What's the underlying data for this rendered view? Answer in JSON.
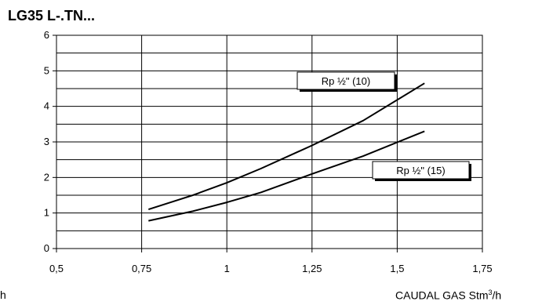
{
  "title": "LG35 L-.TN...",
  "cut_label": "h",
  "x_axis_title": {
    "main": "CAUDAL GAS Stm",
    "sup": "3",
    "end": "/h"
  },
  "chart_data": {
    "type": "line",
    "title": "LG35 L-.TN...",
    "xlabel": "CAUDAL GAS Stm³/h",
    "ylabel": "",
    "xlim": [
      0.5,
      1.75
    ],
    "ylim": [
      0,
      6
    ],
    "x_ticks": [
      "0,5",
      "0,75",
      "1",
      "1,25",
      "1,5",
      "1,75"
    ],
    "y_ticks": [
      "0",
      "1",
      "2",
      "3",
      "4",
      "5",
      "6"
    ],
    "grid": true,
    "grid_y_step": 0.5,
    "series": [
      {
        "name": "Rp ½\" (10)",
        "x": [
          0.77,
          0.9,
          1.0,
          1.1,
          1.25,
          1.4,
          1.58
        ],
        "y": [
          1.1,
          1.5,
          1.85,
          2.25,
          2.9,
          3.6,
          4.65
        ]
      },
      {
        "name": "Rp ½\" (15)",
        "x": [
          0.77,
          0.9,
          1.0,
          1.1,
          1.25,
          1.4,
          1.58
        ],
        "y": [
          0.78,
          1.05,
          1.3,
          1.58,
          2.1,
          2.6,
          3.3
        ]
      }
    ],
    "annotations": [
      {
        "text": "Rp ½\" (10)",
        "series": 0,
        "placement": "above line, upper right"
      },
      {
        "text": "Rp ½\" (15)",
        "series": 1,
        "placement": "below line, right"
      }
    ]
  }
}
